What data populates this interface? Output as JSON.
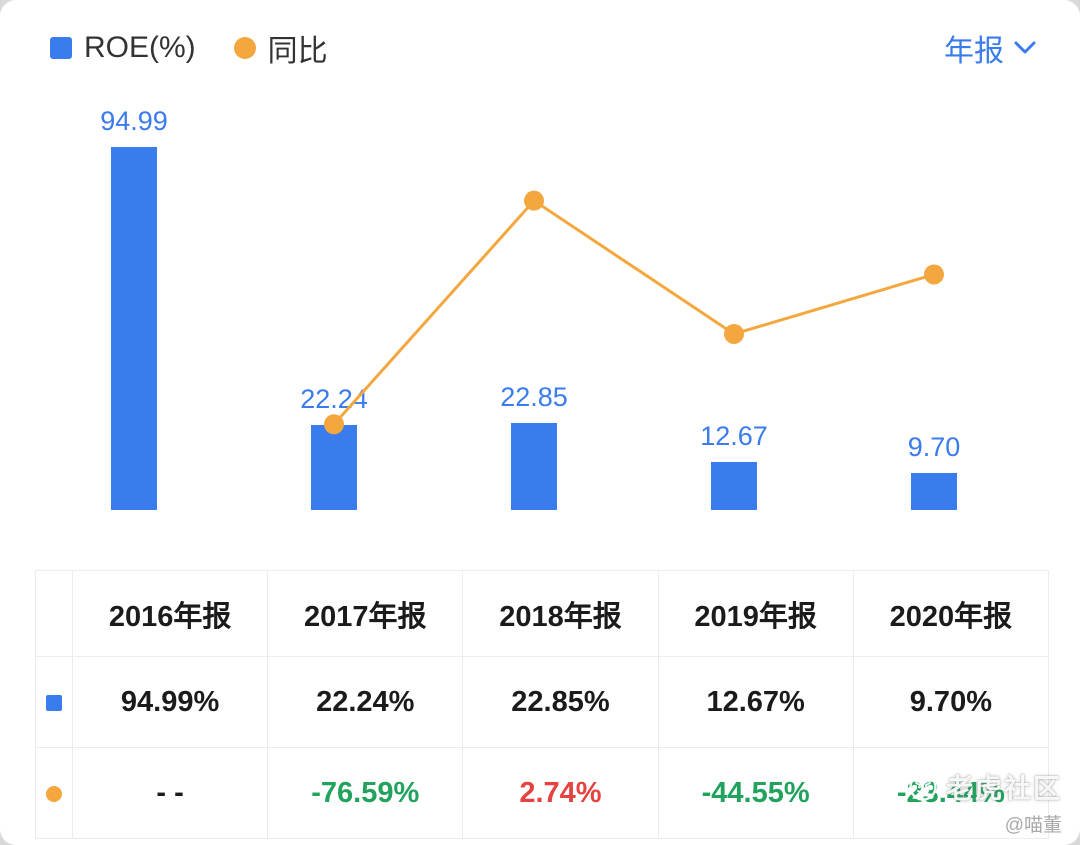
{
  "legend": {
    "roe_label": "ROE(%)",
    "yoy_label": "同比"
  },
  "period": {
    "label": "年报"
  },
  "colors": {
    "bar": "#3a7bee",
    "line": "#f3a73e",
    "accent_blue": "#3a7bee",
    "green": "#21a35d",
    "red": "#e64340"
  },
  "chart_data": {
    "type": "bar",
    "title": "",
    "categories": [
      "2016年报",
      "2017年报",
      "2018年报",
      "2019年报",
      "2020年报"
    ],
    "series": [
      {
        "name": "ROE(%)",
        "type": "bar",
        "values": [
          94.99,
          22.24,
          22.85,
          12.67,
          9.7
        ],
        "labels": [
          "94.99",
          "22.24",
          "22.85",
          "12.67",
          "9.70"
        ]
      },
      {
        "name": "同比",
        "type": "line",
        "values": [
          null,
          -76.59,
          2.74,
          -44.55,
          -23.44
        ]
      }
    ],
    "bar_ylim": [
      0,
      110
    ],
    "line_ylim": [
      -107,
      42
    ],
    "grid": false,
    "legend_position": "top-left"
  },
  "table": {
    "rows": [
      {
        "name": "roe",
        "icon": "square",
        "cells": [
          {
            "text": "94.99%",
            "color": "dark"
          },
          {
            "text": "22.24%",
            "color": "dark"
          },
          {
            "text": "22.85%",
            "color": "dark"
          },
          {
            "text": "12.67%",
            "color": "dark"
          },
          {
            "text": "9.70%",
            "color": "dark"
          }
        ]
      },
      {
        "name": "yoy",
        "icon": "dot",
        "cells": [
          {
            "text": "- -",
            "color": "dark"
          },
          {
            "text": "-76.59%",
            "color": "green"
          },
          {
            "text": "2.74%",
            "color": "red"
          },
          {
            "text": "-44.55%",
            "color": "green"
          },
          {
            "text": "-23.44%",
            "color": "green"
          }
        ]
      }
    ]
  },
  "watermark": {
    "community": "老虎社区",
    "user": "@喵董"
  }
}
